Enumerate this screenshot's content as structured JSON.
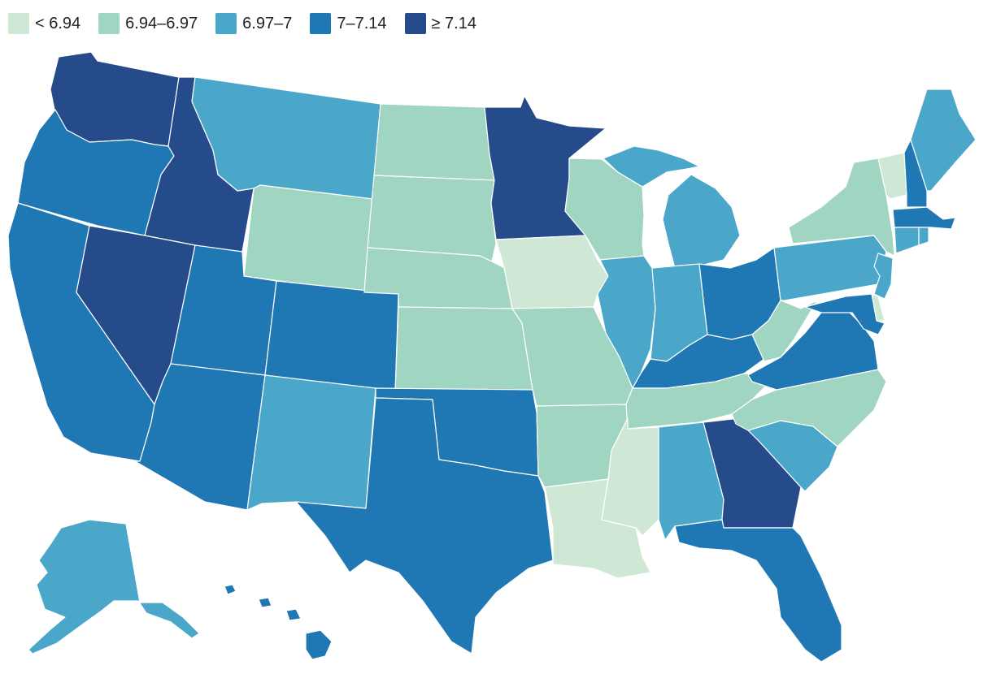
{
  "legend": [
    {
      "label": "< 6.94",
      "color": "#cfe8d6"
    },
    {
      "label": "6.94–6.97",
      "color": "#9fd5c1"
    },
    {
      "label": "6.97–7",
      "color": "#4ba7ca"
    },
    {
      "label": "7–7.14",
      "color": "#1f77b4"
    },
    {
      "label": "≥ 7.14",
      "color": "#264b8a"
    }
  ],
  "state_classes": {
    "WA": 4,
    "OR": 3,
    "CA": 3,
    "ID": 4,
    "NV": 4,
    "MT": 2,
    "WY": 1,
    "UT": 3,
    "AZ": 3,
    "CO": 3,
    "NM": 2,
    "ND": 1,
    "SD": 1,
    "NE": 1,
    "KS": 1,
    "OK": 3,
    "TX": 3,
    "MN": 4,
    "IA": 0,
    "MO": 1,
    "AR": 1,
    "LA": 0,
    "WI": 1,
    "IL": 2,
    "MI": 2,
    "IN": 2,
    "OH": 3,
    "KY": 3,
    "TN": 1,
    "MS": 0,
    "AL": 2,
    "GA": 4,
    "FL": 3,
    "SC": 2,
    "NC": 1,
    "VA": 3,
    "WV": 1,
    "PA": 2,
    "NY": 1,
    "VT": 0,
    "NH": 3,
    "ME": 2,
    "MA": 3,
    "CT": 2,
    "RI": 2,
    "NJ": 2,
    "DE": 0,
    "MD": 3,
    "AK": 2,
    "HI": 3
  }
}
